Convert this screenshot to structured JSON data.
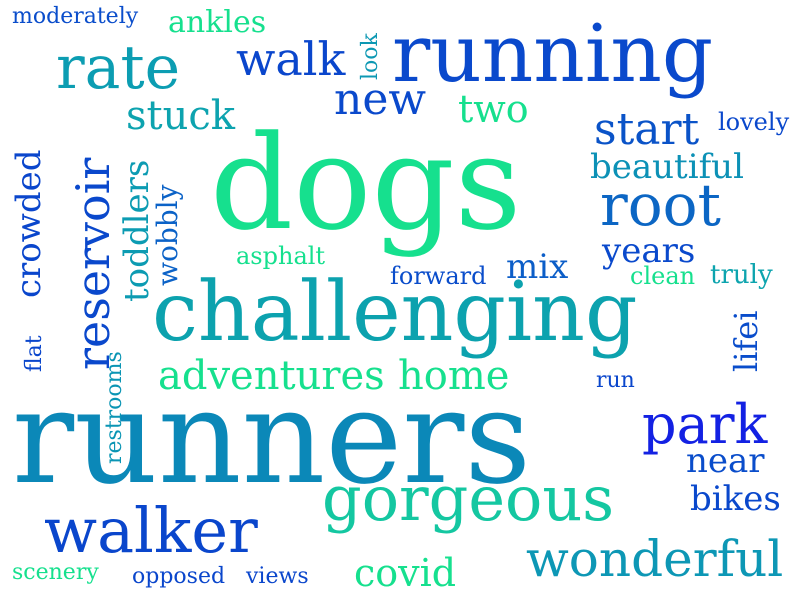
{
  "word_cloud": {
    "words": [
      {
        "text": "dogs",
        "color": "#16e08e"
      },
      {
        "text": "runners",
        "color": "#0b88b8"
      },
      {
        "text": "challenging",
        "color": "#0ca2ae"
      },
      {
        "text": "running",
        "color": "#0a49cc"
      },
      {
        "text": "gorgeous",
        "color": "#14c7a1"
      },
      {
        "text": "walker",
        "color": "#0a46cc"
      },
      {
        "text": "wonderful",
        "color": "#0d97b5"
      },
      {
        "text": "rate",
        "color": "#0c9db2"
      },
      {
        "text": "root",
        "color": "#0c66c4"
      },
      {
        "text": "park",
        "color": "#1321e3"
      },
      {
        "text": "reservoir",
        "color": "#0a48cc"
      },
      {
        "text": "walk",
        "color": "#0a46cc"
      },
      {
        "text": "new",
        "color": "#0a49cc"
      },
      {
        "text": "start",
        "color": "#0a53c8"
      },
      {
        "text": "adventures",
        "color": "#16e08e"
      },
      {
        "text": "home",
        "color": "#16e08e"
      },
      {
        "text": "stuck",
        "color": "#0da3af"
      },
      {
        "text": "two",
        "color": "#16e08e"
      },
      {
        "text": "beautiful",
        "color": "#0c91b6"
      },
      {
        "text": "years",
        "color": "#0a49cc"
      },
      {
        "text": "mix",
        "color": "#0c5ec8"
      },
      {
        "text": "near",
        "color": "#0a4dcb"
      },
      {
        "text": "bikes",
        "color": "#0a48cc"
      },
      {
        "text": "covid",
        "color": "#16e08e"
      },
      {
        "text": "crowded",
        "color": "#0a46cc"
      },
      {
        "text": "toddlers",
        "color": "#0c9bb2"
      },
      {
        "text": "wobbly",
        "color": "#0b62c7"
      },
      {
        "text": "lifei",
        "color": "#0a4dcb"
      },
      {
        "text": "moderately",
        "color": "#0a4dcb"
      },
      {
        "text": "ankles",
        "color": "#16e08e"
      },
      {
        "text": "look",
        "color": "#0d98b3"
      },
      {
        "text": "lovely",
        "color": "#0a48cc"
      },
      {
        "text": "asphalt",
        "color": "#16e08e"
      },
      {
        "text": "forward",
        "color": "#0a4dcb"
      },
      {
        "text": "clean",
        "color": "#16e08e"
      },
      {
        "text": "truly",
        "color": "#0da4ae"
      },
      {
        "text": "restrooms",
        "color": "#0a95b4"
      },
      {
        "text": "flat",
        "color": "#0a46cc"
      },
      {
        "text": "run",
        "color": "#0a46cc"
      },
      {
        "text": "scenery",
        "color": "#16e08e"
      },
      {
        "text": "opposed",
        "color": "#0a46cc"
      },
      {
        "text": "views",
        "color": "#0a46cc"
      }
    ]
  }
}
